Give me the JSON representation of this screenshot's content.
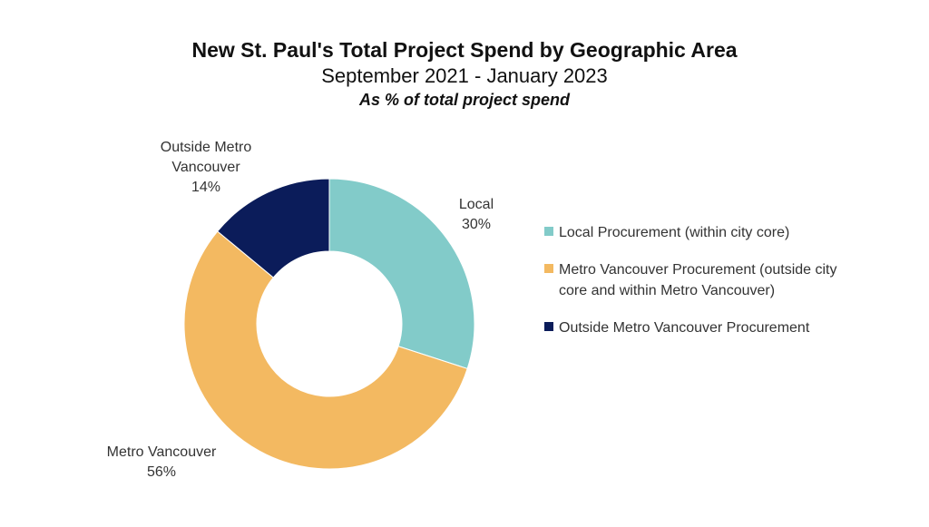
{
  "header": {
    "title": "New St. Paul's Total Project Spend by Geographic Area",
    "subtitle": "September 2021 - January 2023",
    "note": "As % of total project spend"
  },
  "legend": [
    {
      "label": "Local Procurement (within city core)",
      "color": "#82cbc9"
    },
    {
      "label": "Metro Vancouver Procurement (outside city core and within Metro Vancouver)",
      "color": "#f3b961"
    },
    {
      "label": "Outside Metro Vancouver Procurement",
      "color": "#0b1c5a"
    }
  ],
  "chart_data": {
    "type": "pie",
    "variant": "donut",
    "title": "New St. Paul's Total Project Spend by Geographic Area",
    "subtitle": "September 2021 - January 2023",
    "unit": "%",
    "legend_position": "right",
    "categories": [
      "Local",
      "Metro Vancouver",
      "Outside Metro Vancouver"
    ],
    "values": [
      30,
      56,
      14
    ],
    "value_labels": [
      "30%",
      "56%",
      "14%"
    ],
    "colors": [
      "#82cbc9",
      "#f3b961",
      "#0b1c5a"
    ]
  }
}
